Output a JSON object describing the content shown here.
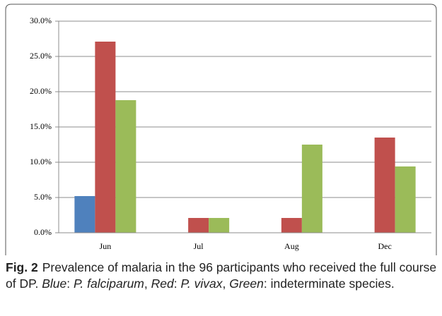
{
  "chart_data": {
    "type": "bar",
    "categories": [
      "Jun",
      "Jul",
      "Aug",
      "Dec"
    ],
    "series": [
      {
        "color": "#4f81bd",
        "values": [
          5.2,
          0,
          0,
          0
        ]
      },
      {
        "color": "#c0504d",
        "values": [
          27.1,
          2.1,
          2.1,
          13.5
        ]
      },
      {
        "color": "#9bbb59",
        "values": [
          18.8,
          2.1,
          12.5,
          9.4
        ]
      }
    ],
    "ylim": [
      0,
      30
    ],
    "yticks": [
      {
        "value": 0,
        "label": "0.0%"
      },
      {
        "value": 5,
        "label": "5.0%"
      },
      {
        "value": 10,
        "label": "10.0%"
      },
      {
        "value": 15,
        "label": "15.0%"
      },
      {
        "value": 20,
        "label": "20.0%"
      },
      {
        "value": 25,
        "label": "25.0%"
      },
      {
        "value": 30,
        "label": "30.0%"
      }
    ],
    "grid": true
  },
  "caption": {
    "label": "Fig. 2",
    "runs": [
      "Prevalence of malaria in the 96 participants who received the full course of DP. ",
      "Blue",
      ": ",
      "P. falciparum",
      ", ",
      "Red",
      ": ",
      "P. vivax",
      ", ",
      "Green",
      ": indeterminate species."
    ]
  }
}
